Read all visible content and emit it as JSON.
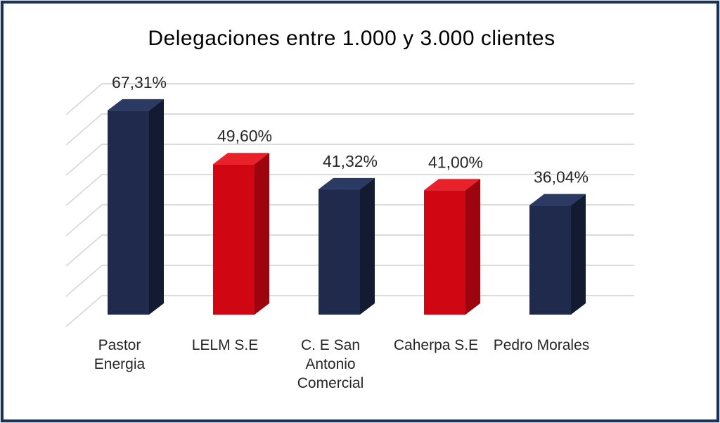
{
  "frame": {
    "border_color": "#1c3156",
    "outer_line_color": "#dce3ee",
    "background": "#ffffff"
  },
  "chart_data": {
    "type": "bar",
    "style": "3d-column",
    "title": "Delegaciones entre 1.000 y 3.000 clientes",
    "categories": [
      "Pastor Energia",
      "LELM S.E",
      "C. E San Antonio Comercial",
      "Caherpa S.E",
      "Pedro Morales"
    ],
    "category_label_lines": [
      [
        "Pastor",
        "Energia"
      ],
      [
        "LELM S.E"
      ],
      [
        "C. E San",
        "Antonio",
        "Comercial"
      ],
      [
        "Caherpa S.E"
      ],
      [
        "Pedro Morales"
      ]
    ],
    "values": [
      67.31,
      49.6,
      41.32,
      41.0,
      36.04
    ],
    "value_labels": [
      "67,31%",
      "49,60%",
      "41,32%",
      "41,00%",
      "36,04%"
    ],
    "unit": "%",
    "xlabel": "",
    "ylabel": "",
    "ylim": [
      0,
      80
    ],
    "gridline_step_percent": 10,
    "grid": true,
    "legend": false,
    "axis_tick_labels_visible": false,
    "bar_colors": [
      {
        "front": "#1f2a4d",
        "top": "#2b3a63",
        "side": "#131b33"
      },
      {
        "front": "#d00713",
        "top": "#e8212b",
        "side": "#9e040d"
      },
      {
        "front": "#1f2a4d",
        "top": "#2b3a63",
        "side": "#131b33"
      },
      {
        "front": "#d00713",
        "top": "#e8212b",
        "side": "#9e040d"
      },
      {
        "front": "#1f2a4d",
        "top": "#2b3a63",
        "side": "#131b33"
      }
    ],
    "gridline_color": "#d8d8d8",
    "text_color": "#262626"
  }
}
